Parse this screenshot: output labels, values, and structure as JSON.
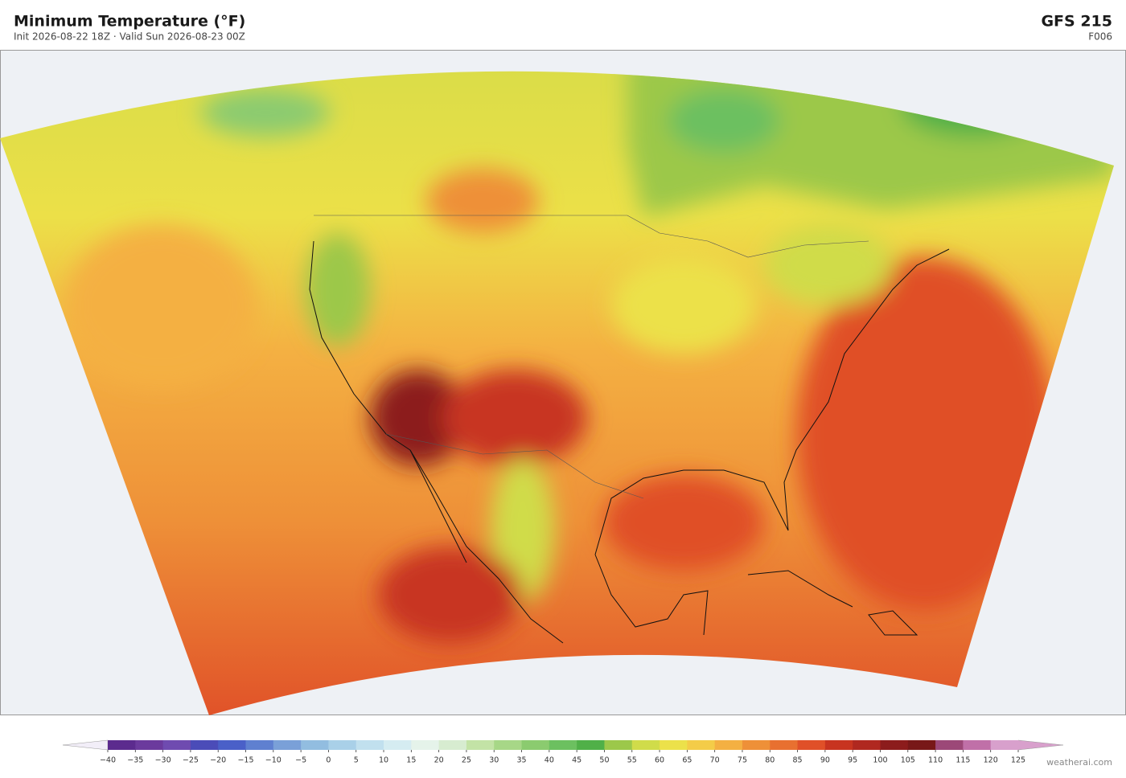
{
  "header": {
    "title": "Minimum Temperature  (°F)",
    "subtitle": "Init 2026-08-22 18Z  ·  Valid Sun 2026-08-23 00Z",
    "model": "GFS  215",
    "forecast_hour": "F006"
  },
  "colorbar": {
    "ticks": [
      {
        "value": -40,
        "label": "−40"
      },
      {
        "value": -35,
        "label": "−35"
      },
      {
        "value": -30,
        "label": "−30"
      },
      {
        "value": -25,
        "label": "−25"
      },
      {
        "value": -20,
        "label": "−20"
      },
      {
        "value": -15,
        "label": "−15"
      },
      {
        "value": -10,
        "label": "−10"
      },
      {
        "value": -5,
        "label": "−5"
      },
      0,
      5,
      10,
      15,
      20,
      25,
      30,
      35,
      40,
      45,
      50,
      55,
      60,
      65,
      70,
      75,
      80,
      85,
      90,
      95,
      100,
      105,
      110,
      115,
      120,
      125
    ],
    "colors": [
      "#5c2b8e",
      "#6b3a9d",
      "#6f4bb0",
      "#4b4cb8",
      "#4a60c8",
      "#5f80d0",
      "#7aa0d8",
      "#92bde0",
      "#a9d0e8",
      "#c1e0ee",
      "#d5ecf1",
      "#e5f3ea",
      "#d7ecd0",
      "#c3e3a6",
      "#a7d787",
      "#8bcb6f",
      "#6cc060",
      "#50b048",
      "#9cc84a",
      "#d0dc4a",
      "#ece14a",
      "#f4cc48",
      "#f4b042",
      "#ee9038",
      "#e87030",
      "#e05028",
      "#c83420",
      "#b02820",
      "#8c1c1c",
      "#781818",
      "#9c4878",
      "#c070a8",
      "#d8a0cc"
    ],
    "under_color": "#f2eef8",
    "over_color": "#d8a0cc"
  },
  "footer": {
    "credit": "weatherai.com"
  }
}
